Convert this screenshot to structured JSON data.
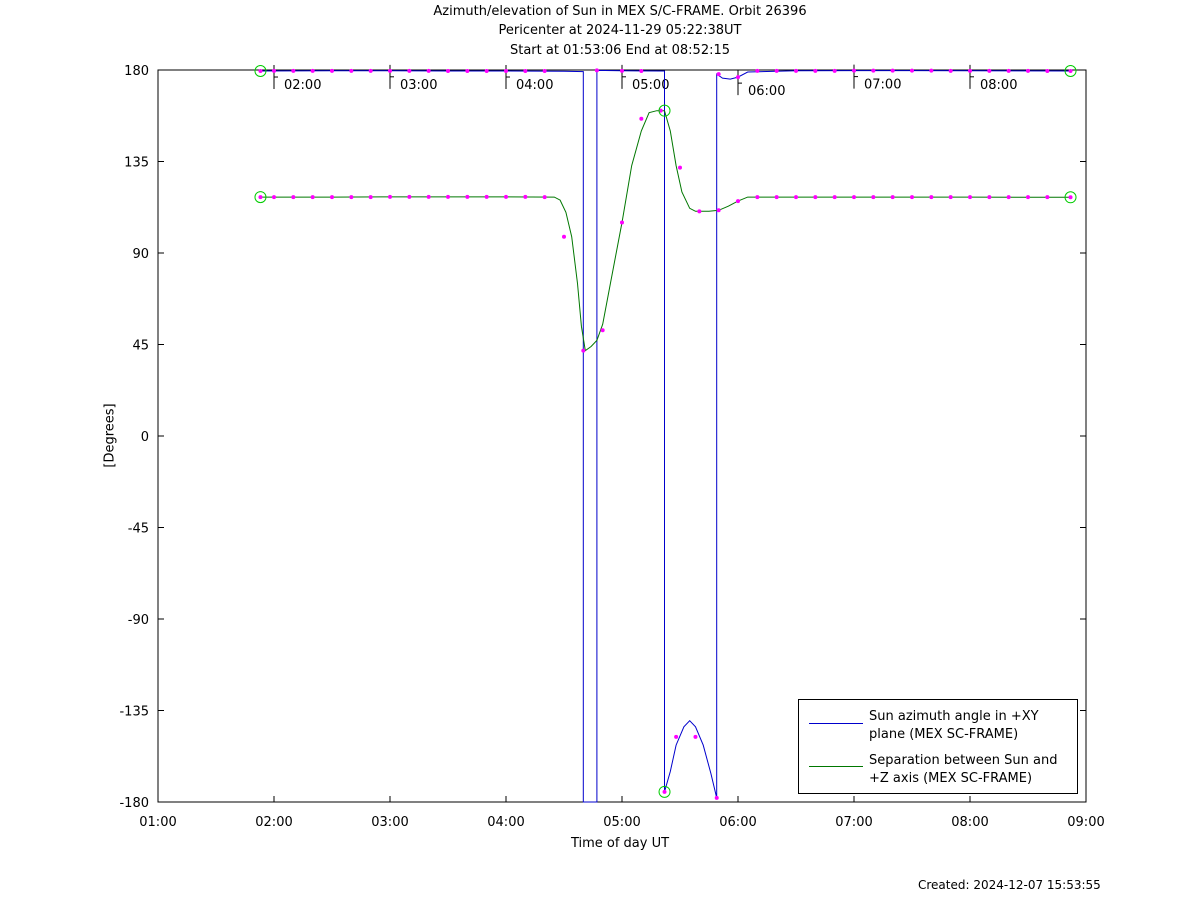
{
  "header": {
    "title_line1": "Azimuth/elevation of Sun in MEX S/C-FRAME.  Orbit 26396",
    "title_line2": "Pericenter at 2024-11-29 05:22:38UT",
    "title_line3": "Start at 01:53:06 End at 08:52:15"
  },
  "footer": {
    "created": "Created: 2024-12-07 15:53:55"
  },
  "chart_data": {
    "type": "line",
    "xlabel": "Time of day UT",
    "ylabel": "[Degrees]",
    "xlim": [
      "01:00",
      "09:00"
    ],
    "ylim": [
      -180,
      180
    ],
    "x_ticks": [
      "01:00",
      "02:00",
      "03:00",
      "04:00",
      "05:00",
      "06:00",
      "07:00",
      "08:00",
      "09:00"
    ],
    "y_ticks": [
      180,
      135,
      90,
      45,
      0,
      -45,
      -90,
      -135,
      -180
    ],
    "grid": false,
    "legend_position": "bottom-right",
    "hour_markers": [
      "02:00",
      "03:00",
      "04:00",
      "05:00",
      "06:00",
      "07:00",
      "08:00"
    ],
    "series": [
      {
        "name": "Sun azimuth angle in +XY plane (MEX SC-FRAME)",
        "legend_lines": [
          "Sun azimuth angle in +XY",
          "plane (MEX SC-FRAME)"
        ],
        "color": "#0000cc",
        "points": [
          [
            "01:53",
            179.5
          ],
          [
            "02:30",
            179.6
          ],
          [
            "03:00",
            179.6
          ],
          [
            "03:30",
            179.5
          ],
          [
            "04:00",
            179.5
          ],
          [
            "04:30",
            179.4
          ],
          [
            "04:40",
            179.2
          ],
          [
            "04:40",
            -180
          ],
          [
            "04:47",
            -180
          ],
          [
            "04:47",
            179.8
          ],
          [
            "05:00",
            179.6
          ],
          [
            "05:20",
            179.5
          ],
          [
            "05:22",
            179.5
          ],
          [
            "05:22",
            -175
          ],
          [
            "05:25",
            -165
          ],
          [
            "05:28",
            -152
          ],
          [
            "05:32",
            -143
          ],
          [
            "05:35",
            -140
          ],
          [
            "05:38",
            -143
          ],
          [
            "05:42",
            -152
          ],
          [
            "05:46",
            -166
          ],
          [
            "05:49",
            -178
          ],
          [
            "05:49",
            178
          ],
          [
            "05:52",
            176
          ],
          [
            "05:56",
            175.5
          ],
          [
            "06:00",
            176.5
          ],
          [
            "06:05",
            179
          ],
          [
            "06:30",
            179.6
          ],
          [
            "07:00",
            179.7
          ],
          [
            "07:30",
            179.7
          ],
          [
            "08:00",
            179.6
          ],
          [
            "08:52",
            179.5
          ]
        ]
      },
      {
        "name": "Separation between Sun and +Z axis (MEX SC-FRAME)",
        "legend_lines": [
          "Separation between Sun and",
          "+Z axis (MEX SC-FRAME)"
        ],
        "color": "#007700",
        "points": [
          [
            "01:53",
            117.5
          ],
          [
            "02:30",
            117.5
          ],
          [
            "03:00",
            117.6
          ],
          [
            "03:30",
            117.6
          ],
          [
            "04:00",
            117.6
          ],
          [
            "04:25",
            117.5
          ],
          [
            "04:28",
            116
          ],
          [
            "04:31",
            110
          ],
          [
            "04:34",
            98
          ],
          [
            "04:37",
            75
          ],
          [
            "04:39",
            54
          ],
          [
            "04:41",
            42
          ],
          [
            "04:44",
            44
          ],
          [
            "04:47",
            47
          ],
          [
            "04:50",
            55
          ],
          [
            "04:54",
            75
          ],
          [
            "05:00",
            105
          ],
          [
            "05:05",
            133
          ],
          [
            "05:10",
            150
          ],
          [
            "05:14",
            159
          ],
          [
            "05:18",
            160
          ],
          [
            "05:22",
            160
          ],
          [
            "05:25",
            150
          ],
          [
            "05:28",
            133
          ],
          [
            "05:31",
            120
          ],
          [
            "05:35",
            112
          ],
          [
            "05:38",
            110.5
          ],
          [
            "05:45",
            110.5
          ],
          [
            "05:50",
            111
          ],
          [
            "05:55",
            113
          ],
          [
            "06:00",
            115.5
          ],
          [
            "06:05",
            117.5
          ],
          [
            "06:10",
            117.5
          ],
          [
            "06:30",
            117.5
          ],
          [
            "07:00",
            117.5
          ],
          [
            "07:30",
            117.5
          ],
          [
            "08:00",
            117.5
          ],
          [
            "08:52",
            117.4
          ]
        ]
      }
    ],
    "markers": {
      "color": "#ff00ff",
      "points": [
        [
          "01:53",
          179.5
        ],
        [
          "02:00",
          179.6
        ],
        [
          "02:10",
          179.6
        ],
        [
          "02:20",
          179.6
        ],
        [
          "02:30",
          179.6
        ],
        [
          "02:40",
          179.6
        ],
        [
          "02:50",
          179.6
        ],
        [
          "03:00",
          179.6
        ],
        [
          "03:10",
          179.6
        ],
        [
          "03:20",
          179.6
        ],
        [
          "03:30",
          179.5
        ],
        [
          "03:40",
          179.5
        ],
        [
          "03:50",
          179.5
        ],
        [
          "04:00",
          179.5
        ],
        [
          "04:10",
          179.5
        ],
        [
          "04:20",
          179.5
        ],
        [
          "04:47",
          179.8
        ],
        [
          "05:00",
          179.6
        ],
        [
          "05:10",
          179.5
        ],
        [
          "05:50",
          178
        ],
        [
          "06:00",
          176.5
        ],
        [
          "06:10",
          179.6
        ],
        [
          "06:20",
          179.6
        ],
        [
          "06:30",
          179.6
        ],
        [
          "06:40",
          179.6
        ],
        [
          "06:50",
          179.6
        ],
        [
          "07:00",
          179.7
        ],
        [
          "07:10",
          179.7
        ],
        [
          "07:20",
          179.7
        ],
        [
          "07:30",
          179.7
        ],
        [
          "07:40",
          179.7
        ],
        [
          "07:50",
          179.6
        ],
        [
          "08:00",
          179.6
        ],
        [
          "08:10",
          179.6
        ],
        [
          "08:20",
          179.6
        ],
        [
          "08:30",
          179.6
        ],
        [
          "08:40",
          179.5
        ],
        [
          "08:52",
          179.5
        ],
        [
          "01:53",
          117.5
        ],
        [
          "02:00",
          117.5
        ],
        [
          "02:10",
          117.5
        ],
        [
          "02:20",
          117.5
        ],
        [
          "02:30",
          117.5
        ],
        [
          "02:40",
          117.5
        ],
        [
          "02:50",
          117.5
        ],
        [
          "03:00",
          117.6
        ],
        [
          "03:10",
          117.6
        ],
        [
          "03:20",
          117.6
        ],
        [
          "03:30",
          117.6
        ],
        [
          "03:40",
          117.6
        ],
        [
          "03:50",
          117.6
        ],
        [
          "04:00",
          117.6
        ],
        [
          "04:10",
          117.6
        ],
        [
          "04:20",
          117.5
        ],
        [
          "04:30",
          98
        ],
        [
          "04:40",
          42
        ],
        [
          "04:50",
          52
        ],
        [
          "05:00",
          105
        ],
        [
          "05:10",
          156
        ],
        [
          "05:20",
          160
        ],
        [
          "05:30",
          132
        ],
        [
          "05:40",
          110.5
        ],
        [
          "05:50",
          111
        ],
        [
          "06:00",
          115.5
        ],
        [
          "06:10",
          117.5
        ],
        [
          "06:20",
          117.5
        ],
        [
          "06:30",
          117.5
        ],
        [
          "06:40",
          117.5
        ],
        [
          "06:50",
          117.5
        ],
        [
          "07:00",
          117.5
        ],
        [
          "07:10",
          117.5
        ],
        [
          "07:20",
          117.5
        ],
        [
          "07:30",
          117.5
        ],
        [
          "07:40",
          117.5
        ],
        [
          "07:50",
          117.5
        ],
        [
          "08:00",
          117.5
        ],
        [
          "08:10",
          117.5
        ],
        [
          "08:20",
          117.5
        ],
        [
          "08:30",
          117.5
        ],
        [
          "08:40",
          117.5
        ],
        [
          "08:52",
          117.4
        ],
        [
          "05:22",
          -175
        ],
        [
          "05:28",
          -148
        ],
        [
          "05:38",
          -148
        ],
        [
          "05:49",
          -178
        ]
      ]
    },
    "endpoint_circles": {
      "color": "#00cc00",
      "points": [
        [
          "01:53",
          179.5
        ],
        [
          "01:53",
          117.5
        ],
        [
          "08:52",
          179.5
        ],
        [
          "08:52",
          117.4
        ],
        [
          "05:22",
          160
        ],
        [
          "05:22",
          -175
        ]
      ]
    }
  }
}
